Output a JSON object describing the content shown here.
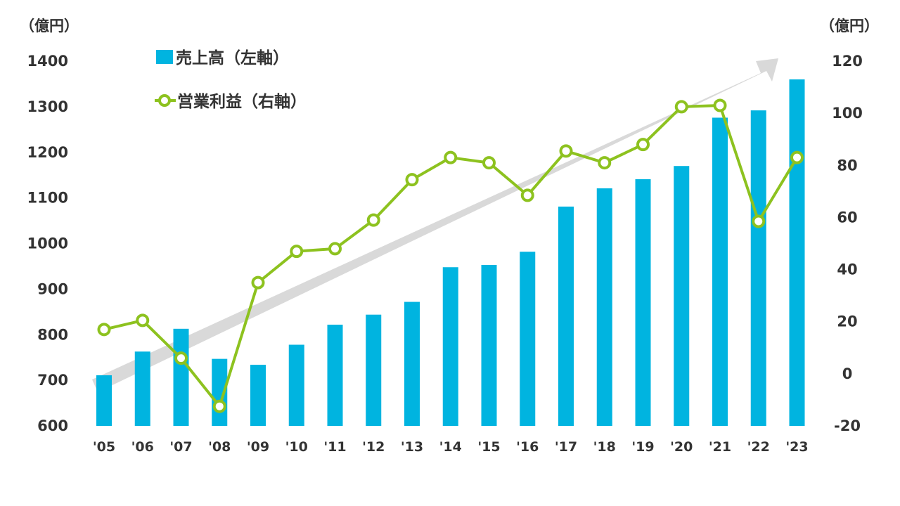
{
  "chart_data": {
    "type": "bar+line",
    "categories": [
      "'05",
      "'06",
      "'07",
      "'08",
      "'09",
      "'10",
      "'11",
      "'12",
      "'13",
      "'14",
      "'15",
      "'16",
      "'17",
      "'18",
      "'19",
      "'20",
      "'21",
      "'22",
      "'23"
    ],
    "series": [
      {
        "name": "売上高（左軸）",
        "type": "bar",
        "axis": "left",
        "color": "#00B4E0",
        "values": [
          711,
          763,
          813,
          747,
          734,
          778,
          822,
          844,
          872,
          948,
          953,
          982,
          1081,
          1121,
          1141,
          1170,
          1276,
          1292,
          1360
        ]
      },
      {
        "name": "営業利益（右軸）",
        "type": "line",
        "axis": "right",
        "color": "#8DC21F",
        "values": [
          17,
          20.5,
          6,
          -12.5,
          35,
          47,
          48,
          59,
          74.5,
          83,
          81,
          68.5,
          85.5,
          81,
          88,
          102.5,
          103,
          58.5,
          83
        ]
      }
    ],
    "left_axis": {
      "unit": "（億円）",
      "ylim": [
        600,
        1400
      ],
      "ticks": [
        "600",
        "700",
        "800",
        "900",
        "1000",
        "1100",
        "1200",
        "1300",
        "1400"
      ]
    },
    "right_axis": {
      "unit": "（億円）",
      "ylim": [
        -20,
        120
      ],
      "ticks": [
        "-20",
        "0",
        "20",
        "40",
        "60",
        "80",
        "100",
        "120"
      ]
    },
    "trend_arrow": {
      "color": "#D9D9D9",
      "from_category_index": 0,
      "to_category_index": 18
    },
    "legend_position": "top-left",
    "grid": false
  }
}
